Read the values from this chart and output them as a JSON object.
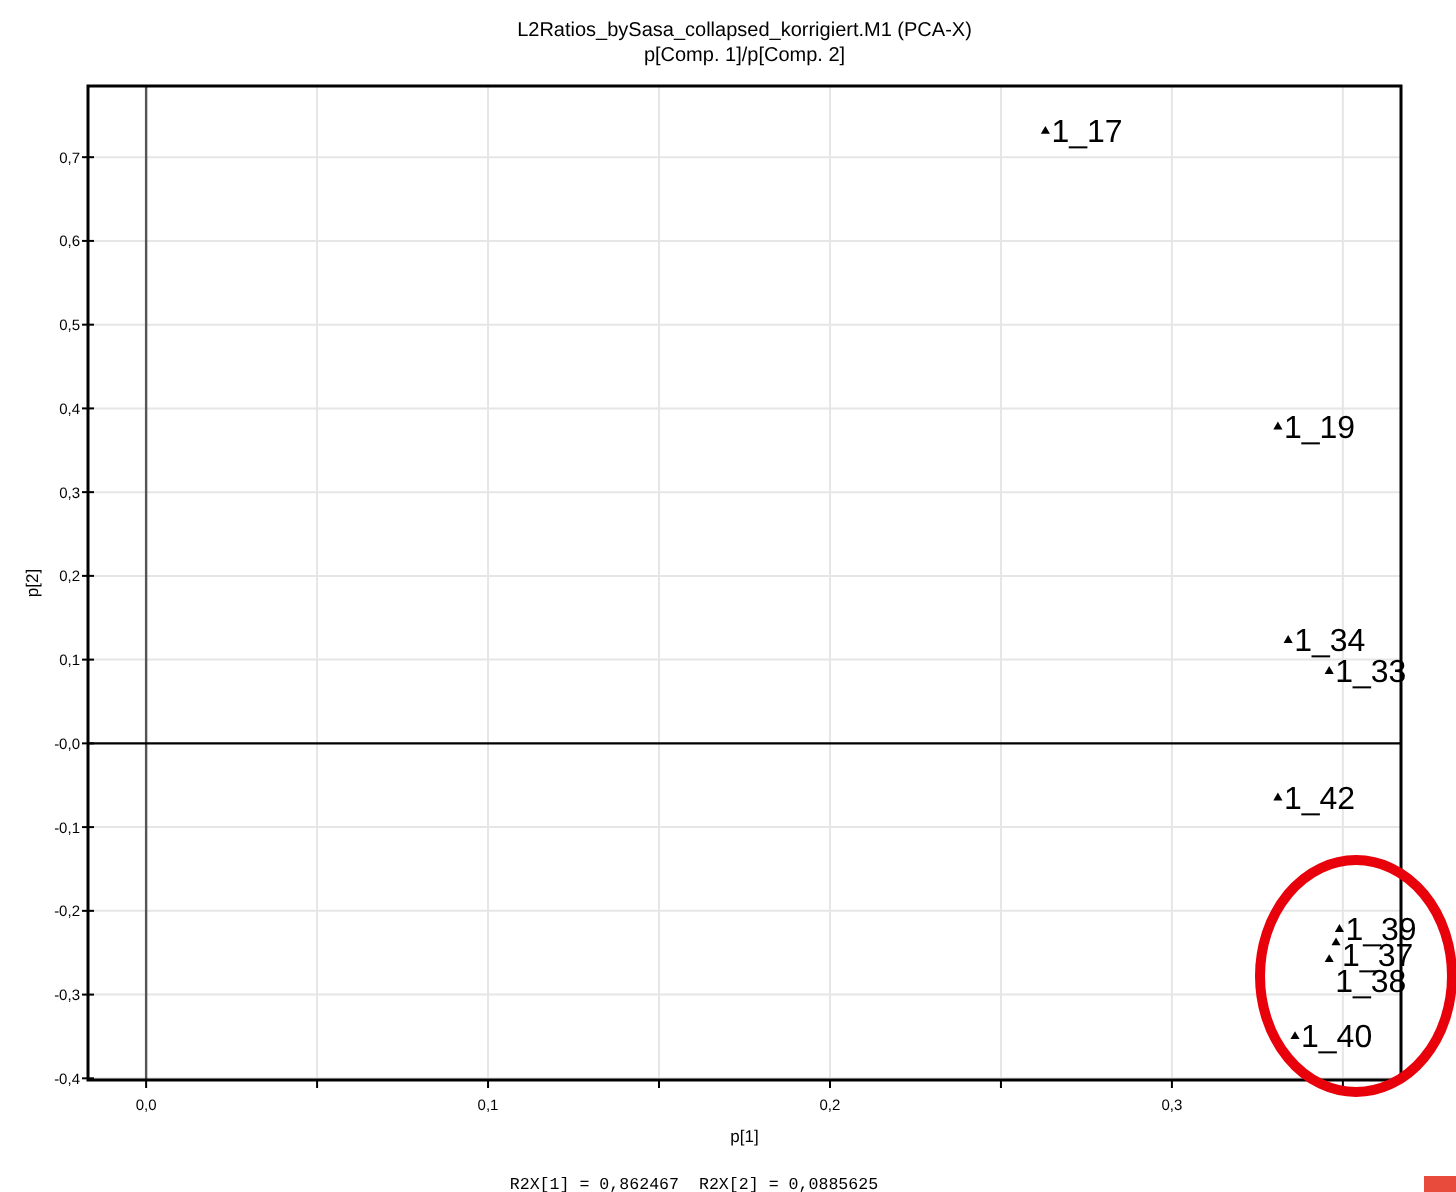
{
  "chart_data": {
    "type": "scatter",
    "title": "L2Ratios_bySasa_collapsed_korrigiert.M1 (PCA-X)",
    "subtitle": "p[Comp. 1]/p[Comp. 2]",
    "xlabel": "p[1]",
    "ylabel": "p[2]",
    "annotations": [
      "R2X[1] = 0,862467  R2X[2] = 0,0885625"
    ],
    "xlim": [
      -0.017,
      0.367
    ],
    "ylim": [
      -0.402,
      0.785
    ],
    "xticks": [
      {
        "value": 0,
        "label": "0,0"
      },
      {
        "value": 0.05,
        "label": null
      },
      {
        "value": 0.1,
        "label": "0,1"
      },
      {
        "value": 0.15,
        "label": null
      },
      {
        "value": 0.2,
        "label": "0,2"
      },
      {
        "value": 0.25,
        "label": null
      },
      {
        "value": 0.3,
        "label": "0,3"
      },
      {
        "value": 0.35,
        "label": null
      }
    ],
    "yticks": [
      {
        "value": -0.4,
        "label": "-0,4"
      },
      {
        "value": -0.3,
        "label": "-0,3"
      },
      {
        "value": -0.2,
        "label": "-0,2"
      },
      {
        "value": -0.1,
        "label": "-0,1"
      },
      {
        "value": 0,
        "label": "-0,0"
      },
      {
        "value": 0.1,
        "label": "0,1"
      },
      {
        "value": 0.2,
        "label": "0,2"
      },
      {
        "value": 0.3,
        "label": "0,3"
      },
      {
        "value": 0.4,
        "label": "0,4"
      },
      {
        "value": 0.5,
        "label": "0,5"
      },
      {
        "value": 0.6,
        "label": "0,6"
      },
      {
        "value": 0.7,
        "label": "0,7"
      }
    ],
    "grid": true,
    "marker": "triangle",
    "ref_lines": [
      {
        "axis": "x",
        "value": 0,
        "color": "#555555"
      },
      {
        "axis": "y",
        "value": 0,
        "color": "#000000"
      }
    ],
    "series": [
      {
        "name": "1_17",
        "color": "#000000",
        "x": [
          0.263
        ],
        "values": [
          0.731
        ]
      },
      {
        "name": "1_19",
        "color": "#000000",
        "x": [
          0.331
        ],
        "values": [
          0.378
        ]
      },
      {
        "name": "1_34",
        "color": "#000000",
        "x": [
          0.334
        ],
        "values": [
          0.123
        ]
      },
      {
        "name": "1_33",
        "color": "#000000",
        "x": [
          0.346
        ],
        "values": [
          0.086
        ]
      },
      {
        "name": "1_42",
        "color": "#000000",
        "x": [
          0.331
        ],
        "values": [
          -0.065
        ]
      },
      {
        "name": "1_39",
        "color": "#000000",
        "x": [
          0.349
        ],
        "values": [
          -0.222
        ]
      },
      {
        "name": "1_37",
        "color": "#000000",
        "x": [
          0.348
        ],
        "values": [
          -0.238
        ]
      },
      {
        "name": "1_38",
        "color": "#000000",
        "x": [
          0.346
        ],
        "values": [
          -0.258
        ]
      },
      {
        "name": "1_40",
        "color": "#000000",
        "x": [
          0.336
        ],
        "values": [
          -0.35
        ]
      }
    ]
  }
}
